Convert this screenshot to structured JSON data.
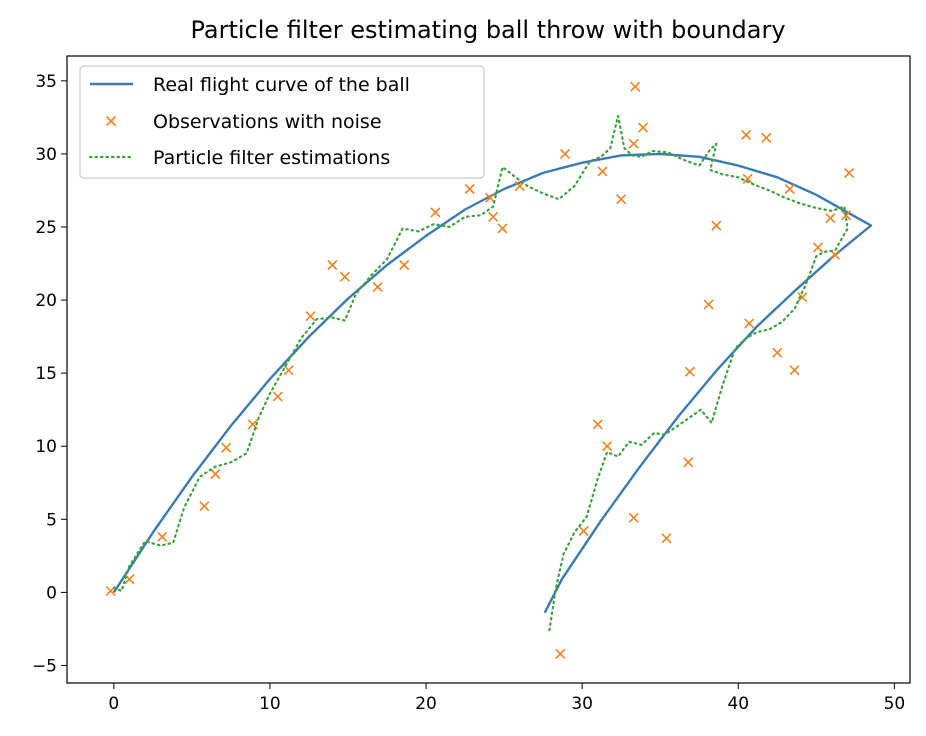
{
  "chart_data": {
    "type": "line",
    "title": "Particle filter estimating ball throw with boundary",
    "xlabel": "",
    "ylabel": "",
    "xlim": [
      -3.0,
      51.0
    ],
    "ylim": [
      -6.2,
      36.7
    ],
    "xticks": [
      0,
      10,
      20,
      30,
      40,
      50
    ],
    "yticks": [
      -5,
      0,
      5,
      10,
      15,
      20,
      25,
      30,
      35
    ],
    "grid": false,
    "legend_position": "top-left",
    "colors": {
      "real": "#3a7bb5",
      "observations": "#f5811f",
      "estimates": "#3da33d"
    },
    "series": [
      {
        "name": "Real flight curve of the ball",
        "style": "solid-line",
        "x": [
          0,
          2.5,
          5,
          7.5,
          10,
          12.5,
          15,
          17.5,
          20,
          22.5,
          25,
          27.5,
          30,
          32.5,
          35,
          37.5,
          40,
          42.5,
          45,
          47.5,
          48.5,
          46.2,
          43.7,
          41.2,
          38.7,
          36.2,
          33.7,
          31.2,
          28.7,
          27.6
        ],
        "y": [
          0,
          4.1,
          7.9,
          11.4,
          14.6,
          17.5,
          20.1,
          22.4,
          24.4,
          26.2,
          27.6,
          28.7,
          29.4,
          29.9,
          30.0,
          29.8,
          29.2,
          28.4,
          27.2,
          25.7,
          25.1,
          23.1,
          20.7,
          18.2,
          15.3,
          12.1,
          8.6,
          4.9,
          0.9,
          -1.4
        ]
      },
      {
        "name": "Observations with noise",
        "style": "x-markers",
        "x": [
          -0.2,
          1.0,
          3.1,
          5.8,
          6.5,
          7.2,
          8.9,
          10.5,
          11.2,
          12.6,
          14.0,
          14.8,
          16.9,
          18.6,
          20.6,
          22.8,
          24.1,
          24.3,
          24.9,
          26.0,
          28.9,
          30.1,
          31.0,
          31.3,
          31.6,
          32.5,
          33.3,
          33.4,
          33.3,
          33.9,
          35.4,
          36.9,
          36.8,
          38.1,
          38.6,
          40.5,
          40.6,
          40.7,
          41.8,
          42.5,
          43.3,
          43.6,
          44.1,
          45.1,
          45.9,
          46.2,
          46.9,
          47.1,
          28.6
        ],
        "y": [
          0.1,
          0.9,
          3.8,
          5.9,
          8.1,
          9.9,
          11.5,
          13.4,
          15.2,
          18.9,
          22.4,
          21.6,
          20.9,
          22.4,
          26.0,
          27.6,
          27.0,
          25.7,
          24.9,
          27.8,
          30.0,
          4.2,
          11.5,
          28.8,
          10.0,
          26.9,
          30.7,
          34.6,
          5.1,
          31.8,
          3.7,
          15.1,
          8.9,
          19.7,
          25.1,
          31.3,
          28.3,
          18.4,
          31.1,
          16.4,
          27.6,
          15.2,
          20.2,
          23.6,
          25.6,
          23.1,
          25.8,
          28.7,
          -4.2
        ]
      },
      {
        "name": "Particle filter estimations",
        "style": "dotted-line",
        "x": [
          0,
          0.5,
          1.0,
          2.0,
          3.0,
          3.8,
          4.5,
          5.5,
          6.5,
          7.5,
          8.5,
          9.3,
          10.0,
          11.0,
          12.0,
          13.0,
          14.0,
          14.8,
          15.5,
          16.5,
          17.5,
          18.5,
          19.5,
          20.5,
          21.5,
          22.5,
          23.5,
          24.3,
          24.9,
          25.5,
          26.5,
          27.5,
          28.5,
          29.5,
          30.5,
          31.2,
          31.8,
          32.3,
          32.7,
          33.2,
          33.8,
          34.5,
          35.5,
          36.5,
          37.5,
          38.2,
          38.6,
          38.2,
          39.0,
          40.0,
          41.0,
          42.0,
          43.0,
          44.0,
          45.0,
          46.0,
          46.8,
          47.0,
          46.2,
          45.5,
          45.0,
          44.3,
          43.6,
          42.8,
          42.0,
          41.2,
          40.5,
          39.8,
          39.0,
          38.3,
          37.6,
          36.8,
          36.0,
          35.3,
          34.6,
          33.8,
          33.0,
          32.3,
          31.6,
          31.0,
          30.3,
          29.5,
          28.8,
          28.3,
          27.9
        ],
        "y": [
          0.3,
          0.1,
          1.8,
          3.5,
          3.2,
          3.4,
          5.8,
          7.9,
          8.6,
          8.9,
          9.5,
          12.0,
          13.6,
          15.5,
          17.4,
          18.7,
          18.8,
          18.6,
          20.4,
          21.7,
          22.8,
          24.9,
          24.7,
          25.2,
          25.0,
          25.7,
          25.8,
          26.4,
          29.1,
          28.6,
          27.8,
          27.3,
          26.9,
          27.8,
          29.5,
          29.8,
          30.4,
          32.6,
          30.4,
          29.9,
          29.8,
          30.2,
          30.1,
          29.6,
          29.2,
          30.3,
          30.7,
          28.9,
          28.6,
          28.4,
          27.9,
          27.5,
          27.0,
          26.6,
          26.3,
          26.1,
          26.4,
          24.9,
          23.4,
          23.3,
          23.0,
          21.0,
          19.4,
          18.5,
          18.0,
          17.8,
          17.4,
          16.7,
          14.2,
          11.6,
          12.5,
          11.9,
          11.3,
          10.8,
          10.9,
          10.1,
          10.3,
          9.3,
          9.6,
          7.8,
          5.2,
          4.1,
          2.6,
          0.2,
          -2.6
        ]
      }
    ]
  }
}
